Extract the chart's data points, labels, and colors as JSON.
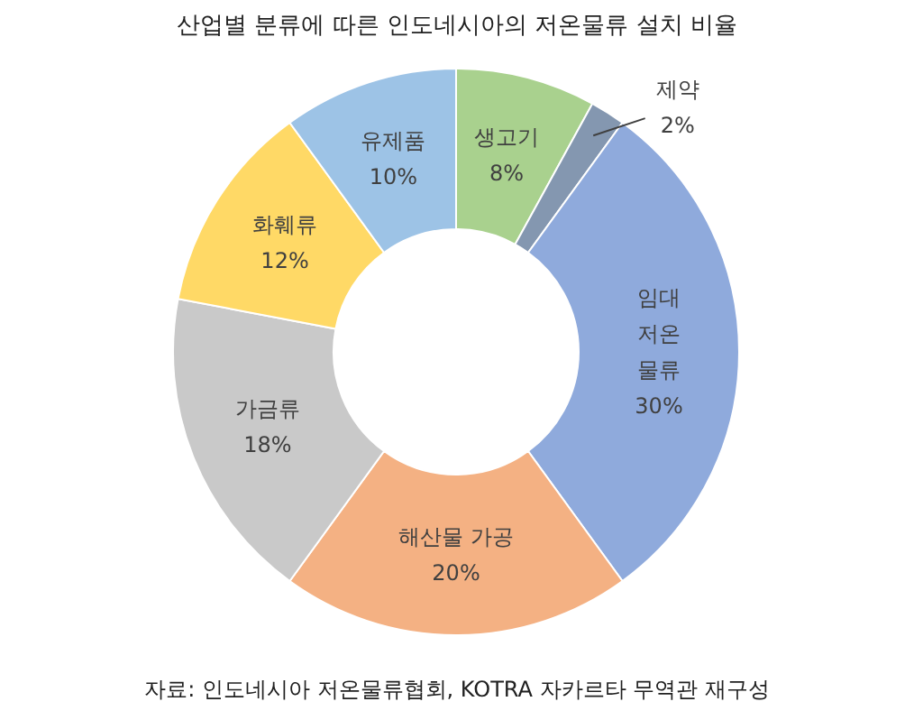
{
  "chart_data": {
    "type": "donut",
    "title": "산업별 분류에 따른 인도네시아의 저온물류 설치 비율",
    "categories": [
      "생고기",
      "제약",
      "임대\n저온\n물류",
      "해산물 가공",
      "가금류",
      "화훼류",
      "유제품"
    ],
    "values": [
      8,
      2,
      30,
      20,
      18,
      12,
      10
    ],
    "value_labels": [
      "8%",
      "2%",
      "30%",
      "20%",
      "18%",
      "12%",
      "10%"
    ],
    "colors": [
      "#a9d18e",
      "#8497b0",
      "#8faadc",
      "#f4b183",
      "#c9c9c9",
      "#ffd966",
      "#9dc3e6"
    ],
    "annotations": [
      "자료: 인도네시아 저온물류협회, KOTRA 자카르타 무역관 재구성"
    ]
  }
}
